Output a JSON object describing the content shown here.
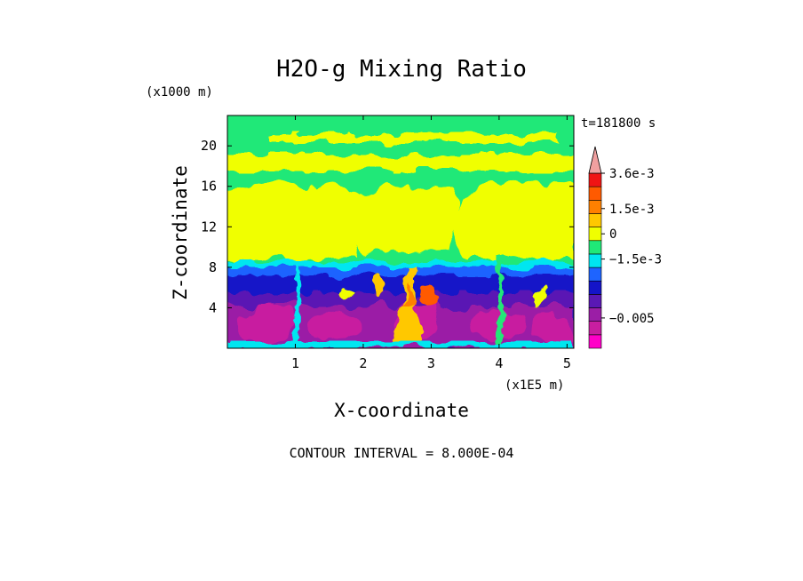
{
  "chart_data": {
    "type": "heatmap",
    "title": "H2O-g Mixing Ratio",
    "xlabel": "X-coordinate",
    "ylabel": "Z-coordinate",
    "x_unit": "(x1E5 m)",
    "y_unit": "(x1000 m)",
    "time_label": "t=181800 s",
    "contour_interval_label": "CONTOUR INTERVAL = 8.000E-04",
    "xlim": [
      0,
      5.1
    ],
    "ylim": [
      0,
      23
    ],
    "x_ticks": [
      1,
      2,
      3,
      4,
      5
    ],
    "y_ticks": [
      4,
      8,
      12,
      16,
      20
    ],
    "x_tick_labels": [
      "1",
      "2",
      "3",
      "4",
      "5"
    ],
    "y_tick_labels": [
      "4",
      "8",
      "12",
      "16",
      "20"
    ],
    "colorbar": {
      "levels": [
        "-0.0068",
        "-0.006",
        "-0.0052",
        "-0.0044",
        "-0.0036",
        "-0.0028",
        "-0.002",
        "-0.0012",
        "-0.0004",
        "0.0004",
        "0.0012",
        "0.002",
        "0.0028",
        "0.0036"
      ],
      "colors": [
        "#ff00c8",
        "#c81ea0",
        "#9b1ea6",
        "#5a18b4",
        "#1414c8",
        "#1e64ff",
        "#00e6f0",
        "#20e878",
        "#f0ff00",
        "#ffc800",
        "#ff8000",
        "#ff5a00",
        "#f01414",
        "#f0a0a0"
      ],
      "tick_labels": [
        "3.6e-3",
        "1.5e-3",
        "0",
        "−1.5e-3",
        "−0.005"
      ],
      "tick_values": [
        0.0036,
        0.0015,
        0,
        -0.0015,
        -0.005
      ]
    },
    "field_description_levels": {
      "upper_band": "0",
      "mid_troposphere": "-1.5e-3",
      "lower_layer": "-0.005"
    }
  }
}
